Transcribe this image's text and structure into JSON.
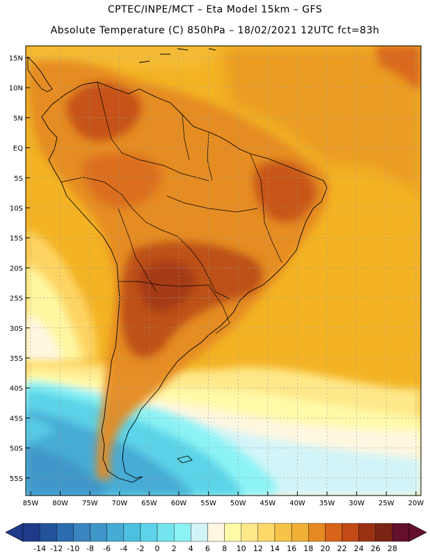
{
  "header": {
    "line1": "CPTEC/INPE/MCT –  Eta Model 15km – GFS",
    "line2": "Absolute Temperature (C) 850hPa – 18/02/2021 12UTC fct=83h"
  },
  "axes": {
    "lat_labels": [
      "15N",
      "10N",
      "5N",
      "EQ",
      "5S",
      "10S",
      "15S",
      "20S",
      "25S",
      "30S",
      "35S",
      "40S",
      "45S",
      "50S",
      "55S"
    ],
    "lon_labels": [
      "85W",
      "80W",
      "75W",
      "70W",
      "65W",
      "60W",
      "55W",
      "50W",
      "45W",
      "40W",
      "35W",
      "30W",
      "25W",
      "20W"
    ]
  },
  "colorbar": {
    "labels": [
      "-14",
      "-12",
      "-10",
      "-8",
      "-6",
      "-4",
      "-2",
      "0",
      "2",
      "4",
      "6",
      "8",
      "10",
      "12",
      "14",
      "16",
      "18",
      "20",
      "22",
      "24",
      "26",
      "28"
    ],
    "colors": [
      "#1f3a8a",
      "#23539a",
      "#2c6cb0",
      "#3a84c0",
      "#3f97c9",
      "#46acd6",
      "#4cc0de",
      "#5cd3e8",
      "#74e5ef",
      "#8cf3f5",
      "#d2f4f8",
      "#fff7e0",
      "#fffaa8",
      "#ffe88a",
      "#ffd86a",
      "#f7c44a",
      "#efb035",
      "#e58a22",
      "#d8641a",
      "#c14a16",
      "#9b3214",
      "#7c2414",
      "#640f2e"
    ]
  },
  "colors": {
    "ocean_base": "#f3b324",
    "continent_warm": "#e07a1a",
    "continent_hot": "#b84a16",
    "cold_south": "#8cdbe9"
  }
}
